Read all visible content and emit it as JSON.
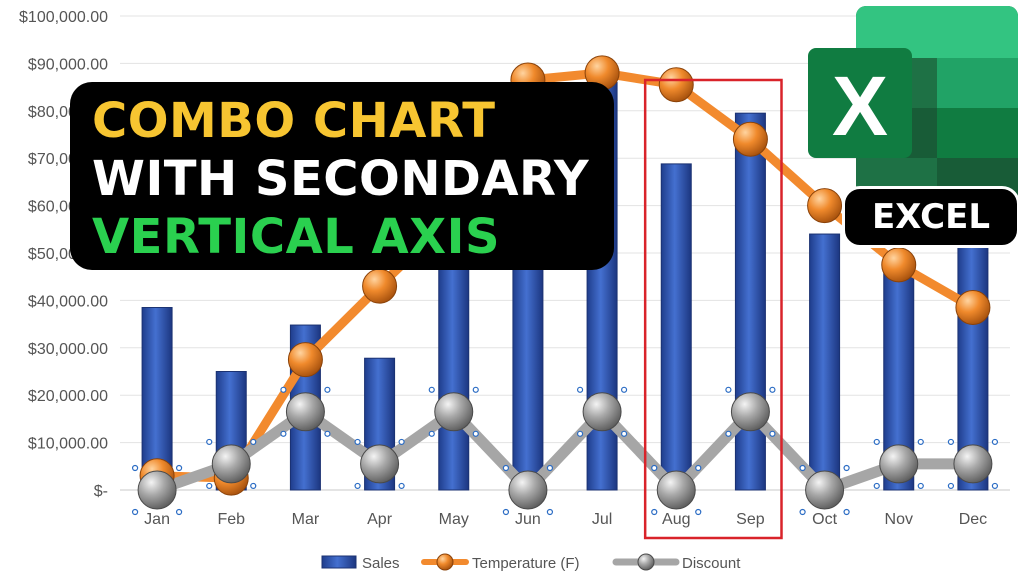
{
  "chart_data": {
    "type": "bar",
    "categories": [
      "Jan",
      "Feb",
      "Mar",
      "Apr",
      "May",
      "Jun",
      "Jul",
      "Aug",
      "Sep",
      "Oct",
      "Nov",
      "Dec"
    ],
    "y_ticks": [
      "$-",
      "$10,000.00",
      "$20,000.00",
      "$30,000.00",
      "$40,000.00",
      "$50,000.00",
      "$60,000.00",
      "$70,000.00",
      "$80,000.00",
      "$90,000.00",
      "$100,000.00"
    ],
    "ylim": [
      0,
      100000
    ],
    "grid": true,
    "series": [
      {
        "name": "Sales",
        "type": "bar",
        "color": "#3057b8",
        "values": [
          38500,
          25000,
          34800,
          27800,
          48000,
          52000,
          86000,
          68800,
          79500,
          54000,
          48000,
          52000
        ]
      },
      {
        "name": "Temperature (F)",
        "type": "line",
        "axis": "secondary",
        "color": "#f28a2e",
        "values": [
          3000,
          2500,
          27500,
          43000,
          58000,
          86500,
          88000,
          85500,
          74000,
          60000,
          47500,
          38500
        ]
      },
      {
        "name": "Discount",
        "type": "line",
        "color": "#a6a6a6",
        "values": [
          0,
          5500,
          16500,
          5500,
          16500,
          0,
          16500,
          0,
          16500,
          0,
          5500,
          5500
        ]
      }
    ],
    "highlight": {
      "categories": [
        "Aug",
        "Sep"
      ],
      "color": "#d9232a"
    },
    "legend_position": "bottom"
  },
  "overlay": {
    "title_lines": [
      "COMBO CHART",
      "WITH SECONDARY",
      "VERTICAL AXIS"
    ],
    "title_colors": [
      "#f7c531",
      "#ffffff",
      "#2ad04f"
    ],
    "logo_letter": "X",
    "badge_text": "EXCEL",
    "logo_icon": "excel-icon"
  }
}
